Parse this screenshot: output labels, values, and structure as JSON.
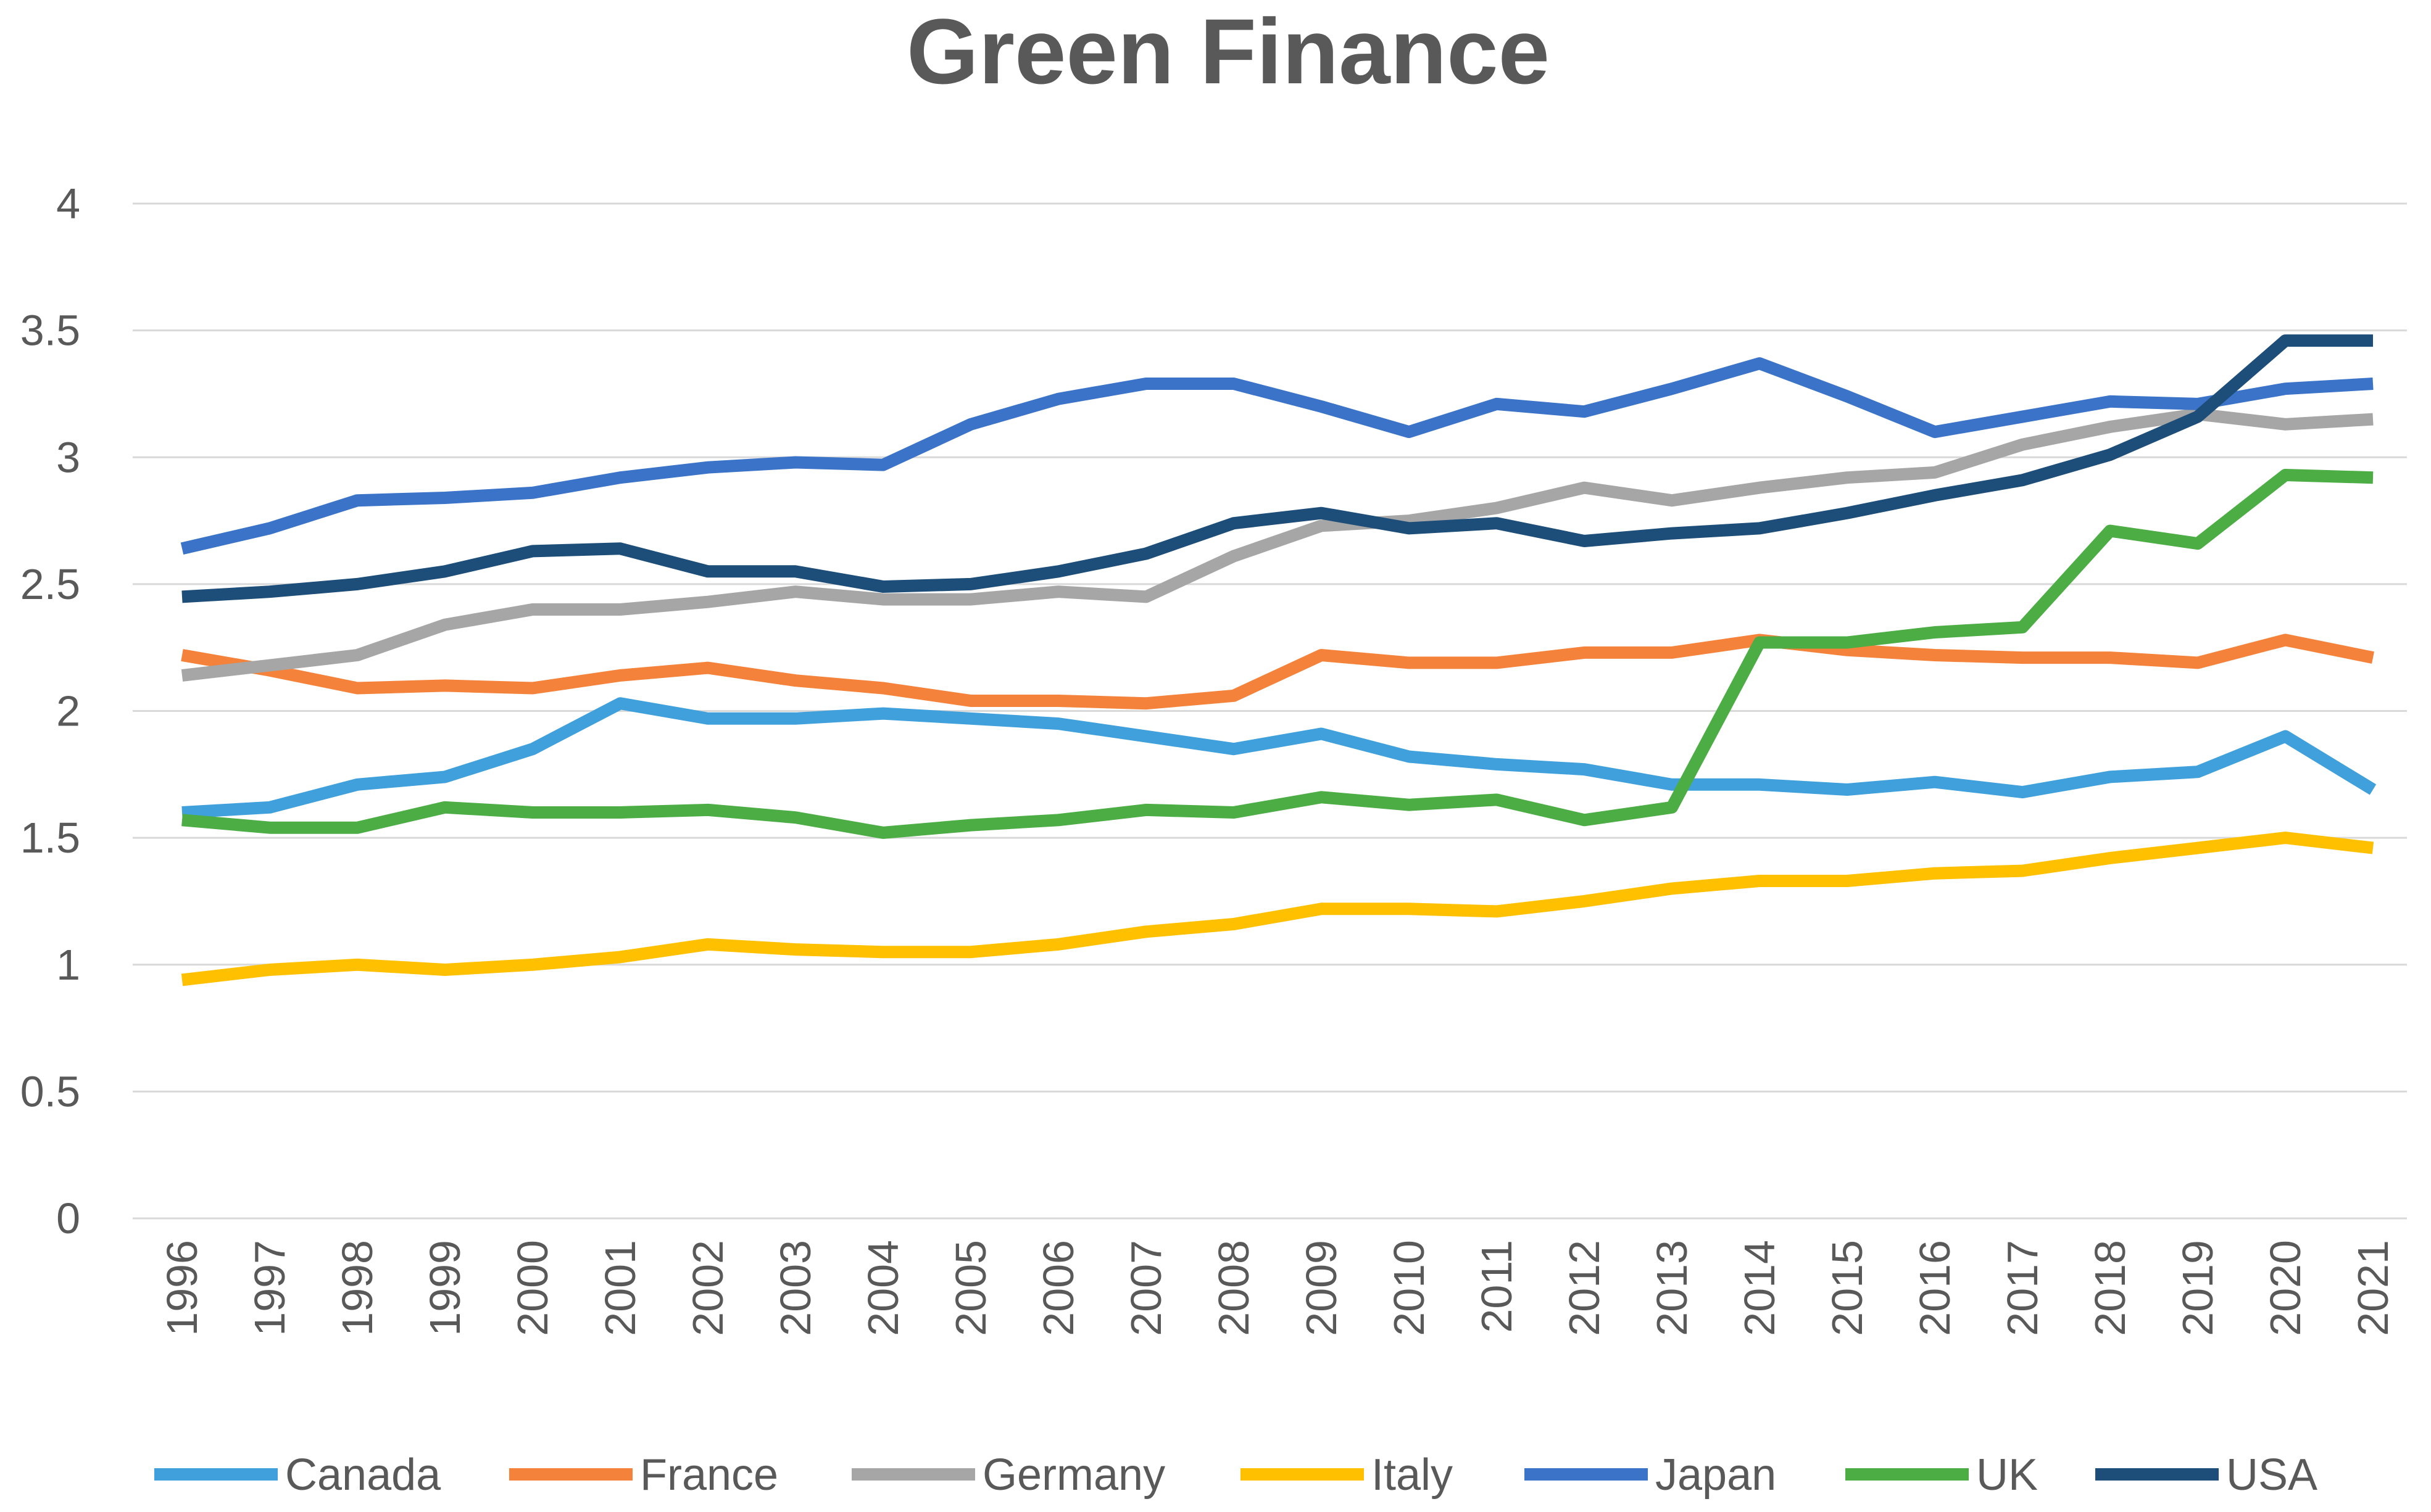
{
  "chart_data": {
    "type": "line",
    "title": "Green Finance",
    "xlabel": "",
    "ylabel": "",
    "ylim": [
      0,
      4
    ],
    "yticks": [
      "0",
      "0.5",
      "1",
      "1.5",
      "2",
      "2.5",
      "3",
      "3.5",
      "4"
    ],
    "grid": true,
    "legend_position": "bottom",
    "categories": [
      "1996",
      "1997",
      "1998",
      "1999",
      "2000",
      "2001",
      "2002",
      "2003",
      "2004",
      "2005",
      "2006",
      "2007",
      "2008",
      "2009",
      "2010",
      "2011",
      "2012",
      "2013",
      "2014",
      "2015",
      "2016",
      "2017",
      "2018",
      "2019",
      "2020",
      "2021"
    ],
    "series": [
      {
        "name": "Canada",
        "color": "#3fa0dc",
        "values": [
          1.6,
          1.62,
          1.71,
          1.74,
          1.85,
          2.03,
          1.97,
          1.97,
          1.99,
          1.97,
          1.95,
          1.9,
          1.85,
          1.91,
          1.82,
          1.79,
          1.77,
          1.71,
          1.71,
          1.69,
          1.72,
          1.68,
          1.74,
          1.76,
          1.9,
          1.69
        ]
      },
      {
        "name": "France",
        "color": "#f4823a",
        "values": [
          2.22,
          2.16,
          2.09,
          2.1,
          2.09,
          2.14,
          2.17,
          2.12,
          2.09,
          2.04,
          2.04,
          2.03,
          2.06,
          2.22,
          2.19,
          2.19,
          2.23,
          2.23,
          2.28,
          2.24,
          2.22,
          2.21,
          2.21,
          2.19,
          2.28,
          2.21
        ]
      },
      {
        "name": "Germany",
        "color": "#a6a6a6",
        "values": [
          2.14,
          2.18,
          2.22,
          2.34,
          2.4,
          2.4,
          2.43,
          2.47,
          2.44,
          2.44,
          2.47,
          2.45,
          2.61,
          2.73,
          2.75,
          2.8,
          2.88,
          2.83,
          2.88,
          2.92,
          2.94,
          3.05,
          3.12,
          3.17,
          3.13,
          3.15
        ]
      },
      {
        "name": "Italy",
        "color": "#ffc000",
        "values": [
          0.94,
          0.98,
          1.0,
          0.98,
          1.0,
          1.03,
          1.08,
          1.06,
          1.05,
          1.05,
          1.08,
          1.13,
          1.16,
          1.22,
          1.22,
          1.21,
          1.25,
          1.3,
          1.33,
          1.33,
          1.36,
          1.37,
          1.42,
          1.46,
          1.5,
          1.46
        ]
      },
      {
        "name": "Japan",
        "color": "#3a73c7",
        "values": [
          2.64,
          2.72,
          2.83,
          2.84,
          2.86,
          2.92,
          2.96,
          2.98,
          2.97,
          3.13,
          3.23,
          3.29,
          3.29,
          3.2,
          3.1,
          3.21,
          3.18,
          3.27,
          3.37,
          3.24,
          3.1,
          3.16,
          3.22,
          3.21,
          3.27,
          3.29
        ]
      },
      {
        "name": "UK",
        "color": "#4cad45",
        "values": [
          1.57,
          1.54,
          1.54,
          1.62,
          1.6,
          1.6,
          1.61,
          1.58,
          1.52,
          1.55,
          1.57,
          1.61,
          1.6,
          1.66,
          1.63,
          1.65,
          1.57,
          1.62,
          2.27,
          2.27,
          2.31,
          2.33,
          2.71,
          2.66,
          2.93,
          2.92
        ]
      },
      {
        "name": "USA",
        "color": "#1d4e79",
        "values": [
          2.45,
          2.47,
          2.5,
          2.55,
          2.63,
          2.64,
          2.55,
          2.55,
          2.49,
          2.5,
          2.55,
          2.62,
          2.74,
          2.78,
          2.72,
          2.74,
          2.67,
          2.7,
          2.72,
          2.78,
          2.85,
          2.91,
          3.01,
          3.16,
          3.46,
          3.46
        ]
      }
    ]
  }
}
